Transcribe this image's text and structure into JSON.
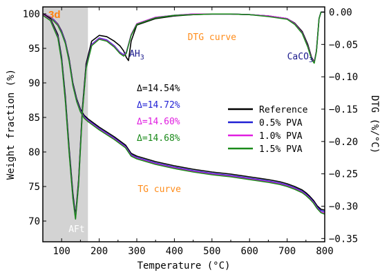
{
  "chart_data": {
    "type": "line",
    "xlabel": "Temperature (°C)",
    "ylabel_left": "Weight fraction (%)",
    "ylabel_right": "DTG (%/°C)",
    "xlim": [
      50,
      800
    ],
    "ylim_left": [
      67,
      101
    ],
    "ylim_right": [
      -0.355,
      0.008
    ],
    "xticks": [
      100,
      200,
      300,
      400,
      500,
      600,
      700,
      800
    ],
    "yticks_left": [
      70,
      75,
      80,
      85,
      90,
      95,
      100
    ],
    "yticks_right": [
      0.0,
      -0.05,
      -0.1,
      -0.15,
      -0.2,
      -0.25,
      -0.3,
      -0.35
    ],
    "ytick_labels_right": [
      "0.00",
      "−0.05",
      "−0.10",
      "−0.15",
      "−0.20",
      "−0.25",
      "−0.30",
      "−0.35"
    ],
    "shaded_region": {
      "x": [
        50,
        170
      ],
      "label": "3d",
      "label_color": "#ff7f0e",
      "fill": "#d3d3d3"
    },
    "annotations": {
      "aft": "AFt",
      "ah3": "AH",
      "ah3_sub": "3",
      "caco3": "CaCO",
      "caco3_sub": "3",
      "dtg_curve": "DTG curve",
      "tg_curve": "TG curve"
    },
    "deltas": [
      {
        "text": "Δ=14.54%",
        "color": "#000000"
      },
      {
        "text": "Δ=14.72%",
        "color": "#1f1fd4"
      },
      {
        "text": "Δ=14.60%",
        "color": "#e01ee0"
      },
      {
        "text": "Δ=14.68%",
        "color": "#1a8a1a"
      }
    ],
    "legend": {
      "position": "center-right",
      "entries": [
        {
          "name": "Reference",
          "color": "#000000"
        },
        {
          "name": "0.5% PVA",
          "color": "#1f1fd4"
        },
        {
          "name": "1.0% PVA",
          "color": "#e01ee0"
        },
        {
          "name": "1.5% PVA",
          "color": "#1a8a1a"
        }
      ]
    },
    "tg_series": [
      {
        "name": "Reference",
        "color": "#000000",
        "x": [
          50,
          60,
          70,
          80,
          90,
          100,
          110,
          120,
          130,
          140,
          150,
          160,
          170,
          200,
          240,
          270,
          285,
          300,
          350,
          400,
          450,
          500,
          550,
          600,
          650,
          680,
          700,
          720,
          740,
          750,
          760,
          770,
          780,
          790,
          800
        ],
        "y": [
          100,
          99.8,
          99.5,
          99.1,
          98.5,
          97.5,
          96,
          93.5,
          90,
          87.7,
          86.2,
          85.3,
          84.8,
          83.6,
          82.2,
          81.0,
          79.8,
          79.4,
          78.6,
          78.0,
          77.5,
          77.1,
          76.8,
          76.4,
          76.0,
          75.7,
          75.4,
          75.0,
          74.5,
          74.1,
          73.6,
          73.0,
          72.2,
          71.7,
          71.6
        ]
      },
      {
        "name": "0.5% PVA",
        "color": "#1f1fd4",
        "x": [
          50,
          60,
          70,
          80,
          90,
          100,
          110,
          120,
          130,
          140,
          150,
          160,
          170,
          200,
          240,
          270,
          285,
          300,
          350,
          400,
          450,
          500,
          550,
          600,
          650,
          680,
          700,
          720,
          740,
          750,
          760,
          770,
          780,
          790,
          800
        ],
        "y": [
          100,
          99.8,
          99.5,
          99.1,
          98.4,
          97.4,
          95.9,
          93.3,
          89.8,
          87.5,
          86.0,
          85.1,
          84.6,
          83.4,
          82.0,
          80.8,
          79.6,
          79.2,
          78.4,
          77.8,
          77.3,
          76.9,
          76.6,
          76.2,
          75.8,
          75.5,
          75.2,
          74.8,
          74.3,
          73.9,
          73.4,
          72.8,
          72.0,
          71.5,
          71.4
        ]
      },
      {
        "name": "1.0% PVA",
        "color": "#e01ee0",
        "x": [
          50,
          60,
          70,
          80,
          90,
          100,
          110,
          120,
          130,
          140,
          150,
          160,
          170,
          200,
          240,
          270,
          285,
          300,
          350,
          400,
          450,
          500,
          550,
          600,
          650,
          680,
          700,
          720,
          740,
          750,
          760,
          770,
          780,
          790,
          800
        ],
        "y": [
          100,
          99.8,
          99.5,
          99.0,
          98.4,
          97.3,
          95.8,
          93.2,
          89.7,
          87.4,
          85.9,
          85.0,
          84.5,
          83.3,
          81.9,
          80.7,
          79.5,
          79.1,
          78.3,
          77.7,
          77.2,
          76.8,
          76.5,
          76.1,
          75.7,
          75.4,
          75.1,
          74.7,
          74.2,
          73.8,
          73.3,
          72.7,
          71.9,
          71.3,
          71.2
        ]
      },
      {
        "name": "1.5% PVA",
        "color": "#1a8a1a",
        "x": [
          50,
          60,
          70,
          80,
          90,
          100,
          110,
          120,
          130,
          140,
          150,
          160,
          170,
          200,
          240,
          270,
          285,
          300,
          350,
          400,
          450,
          500,
          550,
          600,
          650,
          680,
          700,
          720,
          740,
          750,
          760,
          770,
          780,
          790,
          800
        ],
        "y": [
          100,
          99.7,
          99.4,
          98.9,
          98.3,
          97.2,
          95.7,
          93.1,
          89.6,
          87.3,
          85.8,
          84.9,
          84.4,
          83.2,
          81.8,
          80.6,
          79.4,
          79.0,
          78.2,
          77.6,
          77.1,
          76.7,
          76.4,
          76.0,
          75.6,
          75.3,
          75.0,
          74.6,
          74.1,
          73.7,
          73.2,
          72.6,
          71.8,
          71.2,
          71.0
        ]
      }
    ],
    "dtg_series": [
      {
        "name": "Reference",
        "color": "#000000",
        "x": [
          50,
          70,
          90,
          100,
          110,
          120,
          130,
          137,
          145,
          155,
          165,
          180,
          200,
          220,
          240,
          255,
          265,
          272,
          278,
          285,
          300,
          350,
          400,
          450,
          500,
          550,
          600,
          650,
          700,
          720,
          740,
          755,
          765,
          772,
          778,
          785,
          790,
          800
        ],
        "y": [
          -0.003,
          -0.01,
          -0.035,
          -0.07,
          -0.13,
          -0.21,
          -0.28,
          -0.315,
          -0.26,
          -0.15,
          -0.08,
          -0.045,
          -0.036,
          -0.038,
          -0.045,
          -0.052,
          -0.06,
          -0.07,
          -0.075,
          -0.045,
          -0.02,
          -0.01,
          -0.006,
          -0.004,
          -0.003,
          -0.003,
          -0.004,
          -0.006,
          -0.01,
          -0.017,
          -0.03,
          -0.05,
          -0.07,
          -0.077,
          -0.06,
          -0.01,
          0,
          0
        ]
      },
      {
        "name": "0.5% PVA",
        "color": "#1f1fd4",
        "x": [
          50,
          70,
          90,
          100,
          110,
          120,
          130,
          137,
          145,
          155,
          165,
          180,
          200,
          220,
          240,
          255,
          265,
          272,
          278,
          285,
          300,
          350,
          400,
          450,
          500,
          550,
          600,
          650,
          700,
          720,
          740,
          755,
          765,
          772,
          778,
          785,
          790,
          800
        ],
        "y": [
          -0.004,
          -0.012,
          -0.038,
          -0.073,
          -0.135,
          -0.215,
          -0.285,
          -0.318,
          -0.265,
          -0.155,
          -0.085,
          -0.05,
          -0.04,
          -0.043,
          -0.052,
          -0.062,
          -0.066,
          -0.062,
          -0.05,
          -0.035,
          -0.018,
          -0.008,
          -0.005,
          -0.003,
          -0.003,
          -0.003,
          -0.004,
          -0.006,
          -0.01,
          -0.018,
          -0.032,
          -0.053,
          -0.072,
          -0.078,
          -0.06,
          -0.01,
          0,
          0
        ]
      },
      {
        "name": "1.0% PVA",
        "color": "#e01ee0",
        "x": [
          50,
          70,
          90,
          100,
          110,
          120,
          130,
          137,
          145,
          155,
          165,
          180,
          200,
          220,
          240,
          255,
          265,
          272,
          278,
          285,
          300,
          350,
          400,
          450,
          500,
          550,
          600,
          650,
          700,
          720,
          740,
          755,
          765,
          772,
          778,
          785,
          790,
          800
        ],
        "y": [
          -0.004,
          -0.012,
          -0.039,
          -0.075,
          -0.137,
          -0.217,
          -0.287,
          -0.319,
          -0.266,
          -0.156,
          -0.086,
          -0.051,
          -0.041,
          -0.044,
          -0.053,
          -0.063,
          -0.067,
          -0.063,
          -0.05,
          -0.035,
          -0.018,
          -0.008,
          -0.005,
          -0.003,
          -0.003,
          -0.003,
          -0.004,
          -0.006,
          -0.01,
          -0.018,
          -0.032,
          -0.053,
          -0.072,
          -0.078,
          -0.06,
          -0.01,
          0,
          0
        ]
      },
      {
        "name": "1.5% PVA",
        "color": "#1a8a1a",
        "x": [
          50,
          70,
          90,
          100,
          110,
          120,
          130,
          137,
          145,
          155,
          165,
          180,
          200,
          220,
          240,
          255,
          265,
          272,
          278,
          285,
          300,
          350,
          400,
          450,
          500,
          550,
          600,
          650,
          700,
          720,
          740,
          755,
          765,
          772,
          778,
          785,
          790,
          800
        ],
        "y": [
          -0.005,
          -0.013,
          -0.04,
          -0.076,
          -0.138,
          -0.218,
          -0.288,
          -0.32,
          -0.267,
          -0.157,
          -0.087,
          -0.052,
          -0.042,
          -0.045,
          -0.054,
          -0.064,
          -0.068,
          -0.064,
          -0.051,
          -0.036,
          -0.019,
          -0.009,
          -0.005,
          -0.004,
          -0.003,
          -0.003,
          -0.004,
          -0.007,
          -0.011,
          -0.019,
          -0.033,
          -0.054,
          -0.073,
          -0.079,
          -0.061,
          -0.01,
          0,
          0
        ]
      }
    ]
  }
}
